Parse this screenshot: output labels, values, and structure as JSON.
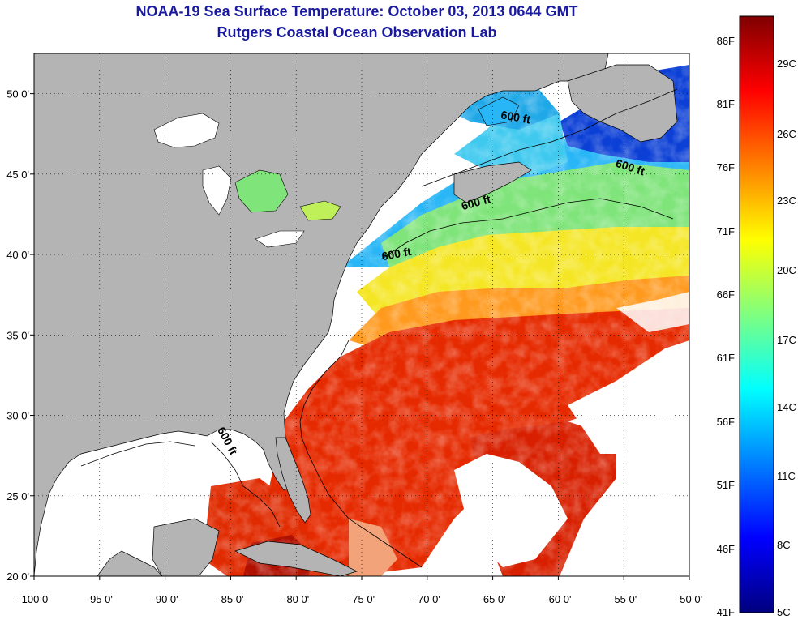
{
  "header": {
    "title": "NOAA-19 Sea Surface Temperature:  October 03, 2013 0644 GMT",
    "subtitle": "Rutgers Coastal Ocean Observation Lab"
  },
  "map": {
    "lon_range": [
      -100,
      -50
    ],
    "lat_range": [
      20,
      52.5
    ],
    "lon_ticks": [
      "-100 0'",
      "-95 0'",
      "-90 0'",
      "-85 0'",
      "-80 0'",
      "-75 0'",
      "-70 0'",
      "-65 0'",
      "-60 0'",
      "-55 0'",
      "-50 0'"
    ],
    "lat_ticks": [
      "20 0'",
      "25 0'",
      "30 0'",
      "35 0'",
      "40 0'",
      "45 0'",
      "50 0'"
    ],
    "grid": "dotted",
    "colors": {
      "land": "#b4b4b4",
      "cloud": "#ffffff",
      "warm": "#e62a00",
      "cool": "#29b6f6"
    },
    "contour_label": "600 ft",
    "contour_labels": [
      {
        "text": "600 ft",
        "lon": -63.3,
        "lat": 48.3,
        "rotate": 10
      },
      {
        "text": "600 ft",
        "lon": -54.6,
        "lat": 45.2,
        "rotate": 18
      },
      {
        "text": "600 ft",
        "lon": -66.2,
        "lat": 43.0,
        "rotate": -15
      },
      {
        "text": "600 ft",
        "lon": -72.3,
        "lat": 39.8,
        "rotate": -10
      },
      {
        "text": "600 ft",
        "lon": -85.5,
        "lat": 28.3,
        "rotate": 62
      }
    ]
  },
  "colorbar": {
    "f_labels": [
      "86F",
      "81F",
      "76F",
      "71F",
      "66F",
      "61F",
      "56F",
      "51F",
      "46F",
      "41F"
    ],
    "c_labels": [
      "29C",
      "26C",
      "23C",
      "20C",
      "17C",
      "14C",
      "11C",
      "8C",
      "5C"
    ],
    "stops": [
      "#00007f",
      "#0000ff",
      "#007fff",
      "#00ffff",
      "#7fff7f",
      "#ffff00",
      "#ff7f00",
      "#ff0000",
      "#7f0000"
    ]
  }
}
